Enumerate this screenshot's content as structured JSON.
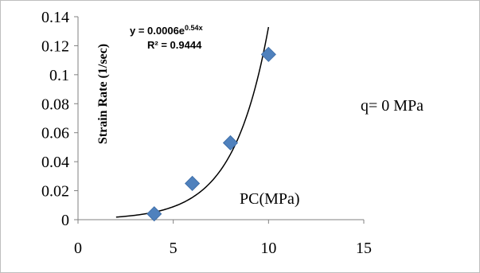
{
  "chart_data": {
    "type": "scatter",
    "title": "",
    "xlabel": "PC(MPa)",
    "ylabel": "Strain Rate (1/sec)",
    "xlim": [
      0,
      15
    ],
    "ylim": [
      0,
      0.14
    ],
    "x_ticks": [
      "0",
      "5",
      "10",
      "15"
    ],
    "y_ticks": [
      "0",
      "0.02",
      "0.04",
      "0.06",
      "0.08",
      "0.1",
      "0.12",
      "0.14"
    ],
    "series": [
      {
        "marker": "diamond",
        "color": "#4f81bd",
        "points": [
          {
            "x": 4,
            "y": 0.004
          },
          {
            "x": 6,
            "y": 0.025
          },
          {
            "x": 8,
            "y": 0.053
          },
          {
            "x": 10,
            "y": 0.114
          }
        ]
      }
    ],
    "trendline": {
      "kind": "exponential",
      "coefficient": 0.0006,
      "rate": 0.54,
      "x_range": [
        2,
        10
      ],
      "color": "#000000",
      "equation_main": "y = 0.0006e",
      "equation_exp": "0.54x",
      "r_squared_label": "R² = 0.9444"
    },
    "annotation": "q= 0 MPa",
    "grid": false,
    "legend": "none"
  }
}
